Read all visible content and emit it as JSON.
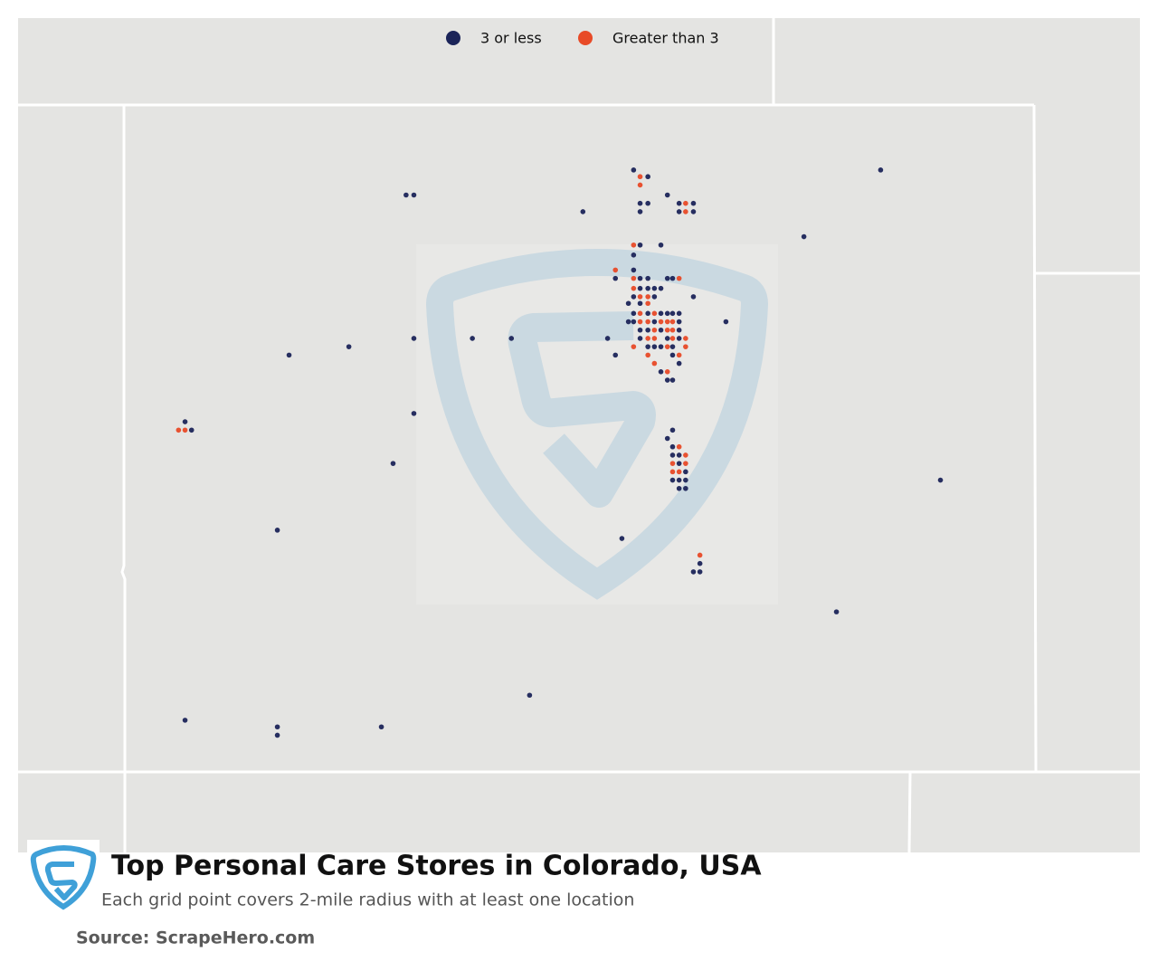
{
  "map": {
    "title": "Top Personal Care Stores in Colorado, USA",
    "subtitle": "Each grid point covers 2-mile radius with at least one location",
    "source": "Source: ScrapeHero.com",
    "lonlim": [
      -109.05,
      -102.05
    ],
    "latlim": [
      37,
      41
    ],
    "groups": [
      {
        "name": "3 or less",
        "color": "#1b2459",
        "points": [
          [
            -105.13,
            40.61
          ],
          [
            -105.02,
            40.57
          ],
          [
            -105.08,
            40.41
          ],
          [
            -105.02,
            40.41
          ],
          [
            -105.08,
            40.36
          ],
          [
            -104.87,
            40.46
          ],
          [
            -104.78,
            40.41
          ],
          [
            -104.67,
            40.41
          ],
          [
            -104.78,
            40.36
          ],
          [
            -104.67,
            40.36
          ],
          [
            -106.88,
            40.46
          ],
          [
            -106.82,
            40.46
          ],
          [
            -105.52,
            40.36
          ],
          [
            -103.23,
            40.61
          ],
          [
            -103.82,
            40.21
          ],
          [
            -105.08,
            40.16
          ],
          [
            -104.92,
            40.16
          ],
          [
            -105.13,
            40.1
          ],
          [
            -105.13,
            40.01
          ],
          [
            -105.27,
            39.96
          ],
          [
            -105.08,
            39.96
          ],
          [
            -105.02,
            39.96
          ],
          [
            -104.87,
            39.96
          ],
          [
            -104.83,
            39.96
          ],
          [
            -105.08,
            39.9
          ],
          [
            -105.02,
            39.9
          ],
          [
            -104.97,
            39.9
          ],
          [
            -104.92,
            39.9
          ],
          [
            -105.13,
            39.85
          ],
          [
            -104.97,
            39.85
          ],
          [
            -104.67,
            39.85
          ],
          [
            -105.17,
            39.81
          ],
          [
            -105.08,
            39.81
          ],
          [
            -105.13,
            39.75
          ],
          [
            -105.02,
            39.75
          ],
          [
            -104.92,
            39.75
          ],
          [
            -104.87,
            39.75
          ],
          [
            -104.83,
            39.75
          ],
          [
            -104.78,
            39.75
          ],
          [
            -105.17,
            39.7
          ],
          [
            -105.13,
            39.7
          ],
          [
            -104.97,
            39.7
          ],
          [
            -104.78,
            39.7
          ],
          [
            -104.42,
            39.7
          ],
          [
            -105.08,
            39.65
          ],
          [
            -105.02,
            39.65
          ],
          [
            -104.92,
            39.65
          ],
          [
            -104.78,
            39.65
          ],
          [
            -105.33,
            39.6
          ],
          [
            -105.08,
            39.6
          ],
          [
            -104.87,
            39.6
          ],
          [
            -104.78,
            39.6
          ],
          [
            -105.02,
            39.55
          ],
          [
            -104.97,
            39.55
          ],
          [
            -104.92,
            39.55
          ],
          [
            -104.83,
            39.55
          ],
          [
            -105.27,
            39.5
          ],
          [
            -104.83,
            39.5
          ],
          [
            -104.78,
            39.45
          ],
          [
            -104.92,
            39.4
          ],
          [
            -104.87,
            39.35
          ],
          [
            -104.83,
            39.35
          ],
          [
            -107.78,
            39.5
          ],
          [
            -107.32,
            39.55
          ],
          [
            -106.82,
            39.6
          ],
          [
            -106.37,
            39.6
          ],
          [
            -106.07,
            39.6
          ],
          [
            -108.58,
            39.1
          ],
          [
            -108.53,
            39.05
          ],
          [
            -106.82,
            39.15
          ],
          [
            -106.98,
            38.85
          ],
          [
            -107.87,
            38.45
          ],
          [
            -105.22,
            38.4
          ],
          [
            -103.57,
            37.96
          ],
          [
            -105.93,
            37.46
          ],
          [
            -108.58,
            37.31
          ],
          [
            -107.87,
            37.27
          ],
          [
            -107.87,
            37.22
          ],
          [
            -107.07,
            37.27
          ],
          [
            -102.77,
            38.75
          ],
          [
            -104.83,
            39.05
          ],
          [
            -104.87,
            39.0
          ],
          [
            -104.83,
            38.95
          ],
          [
            -104.83,
            38.9
          ],
          [
            -104.78,
            38.9
          ],
          [
            -104.78,
            38.85
          ],
          [
            -104.73,
            38.8
          ],
          [
            -104.83,
            38.75
          ],
          [
            -104.78,
            38.75
          ],
          [
            -104.73,
            38.75
          ],
          [
            -104.78,
            38.7
          ],
          [
            -104.73,
            38.7
          ],
          [
            -104.62,
            38.25
          ],
          [
            -104.67,
            38.2
          ],
          [
            -104.62,
            38.2
          ]
        ]
      },
      {
        "name": "Greater than 3",
        "color": "#e84a27",
        "points": [
          [
            -105.08,
            40.57
          ],
          [
            -105.08,
            40.52
          ],
          [
            -104.73,
            40.41
          ],
          [
            -104.73,
            40.36
          ],
          [
            -105.13,
            40.16
          ],
          [
            -105.27,
            40.01
          ],
          [
            -105.13,
            39.96
          ],
          [
            -104.78,
            39.96
          ],
          [
            -105.13,
            39.9
          ],
          [
            -105.08,
            39.85
          ],
          [
            -105.02,
            39.85
          ],
          [
            -105.02,
            39.81
          ],
          [
            -105.08,
            39.75
          ],
          [
            -104.97,
            39.75
          ],
          [
            -105.08,
            39.7
          ],
          [
            -105.02,
            39.7
          ],
          [
            -104.92,
            39.7
          ],
          [
            -104.87,
            39.7
          ],
          [
            -104.83,
            39.7
          ],
          [
            -104.97,
            39.65
          ],
          [
            -104.87,
            39.65
          ],
          [
            -104.83,
            39.65
          ],
          [
            -105.02,
            39.6
          ],
          [
            -104.97,
            39.6
          ],
          [
            -104.83,
            39.6
          ],
          [
            -104.73,
            39.6
          ],
          [
            -105.13,
            39.55
          ],
          [
            -104.87,
            39.55
          ],
          [
            -104.73,
            39.55
          ],
          [
            -105.02,
            39.5
          ],
          [
            -104.78,
            39.5
          ],
          [
            -104.97,
            39.45
          ],
          [
            -104.87,
            39.4
          ],
          [
            -108.63,
            39.05
          ],
          [
            -108.58,
            39.05
          ],
          [
            -104.78,
            38.95
          ],
          [
            -104.73,
            38.9
          ],
          [
            -104.83,
            38.85
          ],
          [
            -104.73,
            38.85
          ],
          [
            -104.83,
            38.8
          ],
          [
            -104.78,
            38.8
          ],
          [
            -104.62,
            38.3
          ]
        ]
      }
    ]
  }
}
